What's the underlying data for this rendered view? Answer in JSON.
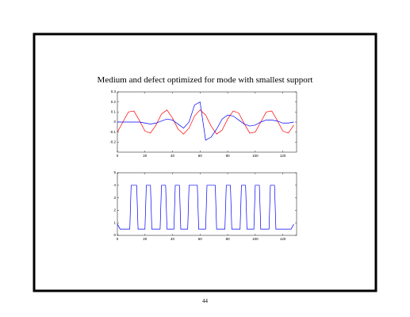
{
  "slide_title": "Medium and defect optimized for mode with smallest support",
  "page_number": "44",
  "chart_data": [
    {
      "type": "line",
      "x": [
        0,
        4,
        8,
        12,
        16,
        20,
        24,
        28,
        32,
        36,
        40,
        44,
        48,
        52,
        56,
        60,
        64,
        68,
        72,
        76,
        80,
        84,
        88,
        92,
        96,
        100,
        104,
        108,
        112,
        116,
        120,
        124,
        128
      ],
      "series": [
        {
          "color": "#ff0000",
          "values": [
            -0.1,
            0,
            0.1,
            0.11,
            0.015,
            -0.09,
            -0.11,
            -0.03,
            0.08,
            0.12,
            0.04,
            -0.07,
            -0.12,
            -0.06,
            0.06,
            0.12,
            0.07,
            -0.04,
            -0.12,
            -0.08,
            0.03,
            0.11,
            0.09,
            -0.015,
            -0.11,
            -0.1,
            0,
            0.1,
            0.11,
            0.015,
            -0.09,
            -0.11,
            -0.03
          ]
        },
        {
          "color": "#0000ff",
          "values": [
            0,
            0,
            0,
            0,
            0,
            -0.01,
            -0.02,
            -0.01,
            0.01,
            0.03,
            0.02,
            -0.02,
            -0.06,
            0,
            0.17,
            0.2,
            -0.18,
            -0.15,
            -0.07,
            0.03,
            0.07,
            0.06,
            0.02,
            -0.02,
            -0.04,
            -0.03,
            0,
            0.02,
            0.02,
            0.01,
            -0.01,
            -0.01,
            0
          ]
        }
      ],
      "xlim": [
        0,
        130
      ],
      "xticks": [
        0,
        20,
        40,
        60,
        80,
        100,
        120
      ],
      "ylim": [
        -0.3,
        0.3
      ],
      "yticks": [
        -0.2,
        -0.1,
        0,
        0.1,
        0.2,
        0.3
      ]
    },
    {
      "type": "line",
      "x": [
        0,
        2,
        9,
        10,
        14,
        15,
        20,
        21,
        24,
        25,
        31,
        32,
        35,
        36,
        41,
        42,
        45,
        46,
        51,
        52,
        58,
        59,
        64,
        65,
        71,
        72,
        78,
        79,
        82,
        83,
        89,
        90,
        93,
        94,
        99,
        100,
        103,
        104,
        110,
        111,
        114,
        115,
        126,
        128
      ],
      "series": [
        {
          "color": "#0000ff",
          "values": [
            0.9,
            0.5,
            0.5,
            4,
            4,
            0.5,
            0.5,
            4,
            4,
            0.5,
            0.5,
            4,
            4,
            0.5,
            0.5,
            4,
            4,
            0.5,
            0.5,
            4,
            4,
            0.5,
            0.5,
            4,
            4,
            0.5,
            0.5,
            4,
            4,
            0.5,
            0.5,
            4,
            4,
            0.5,
            0.5,
            4,
            4,
            0.5,
            0.5,
            4,
            4,
            0.5,
            0.5,
            0.9
          ]
        }
      ],
      "xlim": [
        0,
        130
      ],
      "xticks": [
        0,
        20,
        40,
        60,
        80,
        100,
        120
      ],
      "ylim": [
        0,
        5
      ],
      "yticks": [
        0,
        1,
        2,
        3,
        4,
        5
      ]
    }
  ]
}
